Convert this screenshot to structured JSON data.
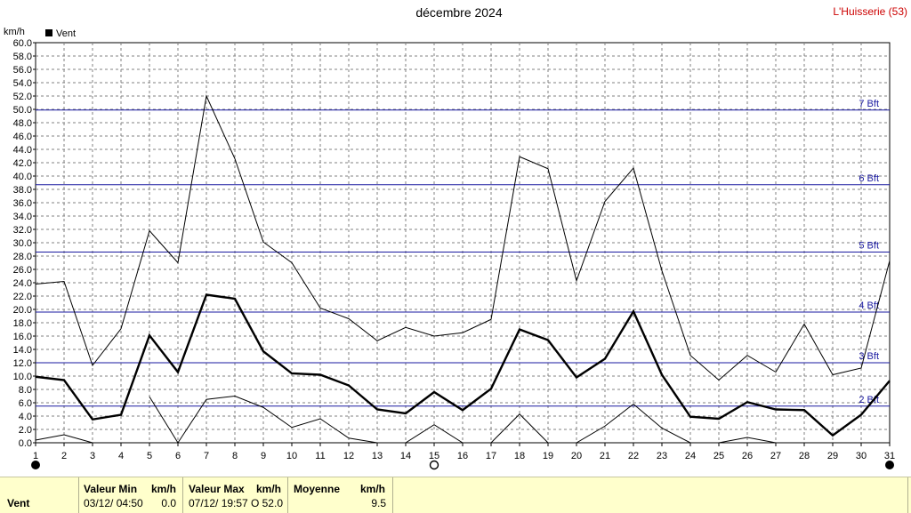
{
  "title": "décembre 2024",
  "station": "L'Huisserie (53)",
  "chart_data": {
    "type": "line",
    "ylabel": "km/h",
    "ylim": [
      0,
      60
    ],
    "ytick_step": 2,
    "x": [
      1,
      2,
      3,
      4,
      5,
      6,
      7,
      8,
      9,
      10,
      11,
      12,
      13,
      14,
      15,
      16,
      17,
      18,
      19,
      20,
      21,
      22,
      23,
      24,
      25,
      26,
      27,
      28,
      29,
      30,
      31
    ],
    "legend": [
      {
        "name": "Vent",
        "color": "#000000"
      }
    ],
    "series": [
      {
        "name": "Vent",
        "role": "mean",
        "stroke": "#000000",
        "values": [
          9.9,
          9.4,
          3.5,
          4.2,
          16.1,
          10.6,
          22.2,
          21.6,
          13.7,
          10.4,
          10.2,
          8.6,
          5.0,
          4.4,
          7.6,
          4.9,
          8.1,
          17.0,
          15.4,
          9.8,
          12.6,
          19.7,
          10.2,
          3.9,
          3.6,
          6.1,
          5.0,
          4.9,
          1.1,
          4.2,
          9.3
        ]
      },
      {
        "name": "",
        "role": "max",
        "stroke": "#000000",
        "values": [
          23.8,
          24.2,
          11.6,
          17.1,
          31.8,
          27.0,
          52.0,
          42.6,
          30.1,
          27.0,
          20.2,
          18.6,
          15.3,
          17.3,
          16.0,
          16.5,
          18.5,
          42.9,
          41.1,
          24.3,
          36.2,
          41.2,
          25.8,
          13.1,
          9.4,
          13.1,
          10.6,
          17.8,
          10.2,
          11.2,
          27.3
        ]
      },
      {
        "name": "",
        "role": "min",
        "stroke": "#000000",
        "values": [
          0.4,
          1.2,
          0.0,
          null,
          6.9,
          0.0,
          6.5,
          7.0,
          5.3,
          2.3,
          3.6,
          0.7,
          0.0,
          0.0,
          2.7,
          0.0,
          0.0,
          4.3,
          0.0,
          0.0,
          2.5,
          5.8,
          2.2,
          0.0,
          0.0,
          0.8,
          0.0,
          null,
          null,
          null,
          null
        ]
      }
    ],
    "reference_lines": [
      {
        "label": "2 Bft",
        "value": 5.5
      },
      {
        "label": "3 Bft",
        "value": 12.0
      },
      {
        "label": "4 Bft",
        "value": 19.6
      },
      {
        "label": "5 Bft",
        "value": 28.6
      },
      {
        "label": "6 Bft",
        "value": 38.7
      },
      {
        "label": "7 Bft",
        "value": 49.9
      }
    ],
    "grid": true,
    "line_color": "#1a1aa0",
    "moon_markers": [
      {
        "day": 1,
        "phase": "new"
      },
      {
        "day": 15,
        "phase": "full"
      },
      {
        "day": 31,
        "phase": "new"
      }
    ]
  },
  "footer": {
    "row_label": "Vent",
    "min_header": "Valeur Min",
    "min_unit": "km/h",
    "min_date": "03/12/  04:50",
    "min_value": "0.0",
    "max_header": "Valeur Max",
    "max_unit": "km/h",
    "max_date": "07/12/  19:57",
    "max_value": "O 52.0",
    "mean_header": "Moyenne",
    "mean_unit": "km/h",
    "mean_value": "9.5"
  }
}
